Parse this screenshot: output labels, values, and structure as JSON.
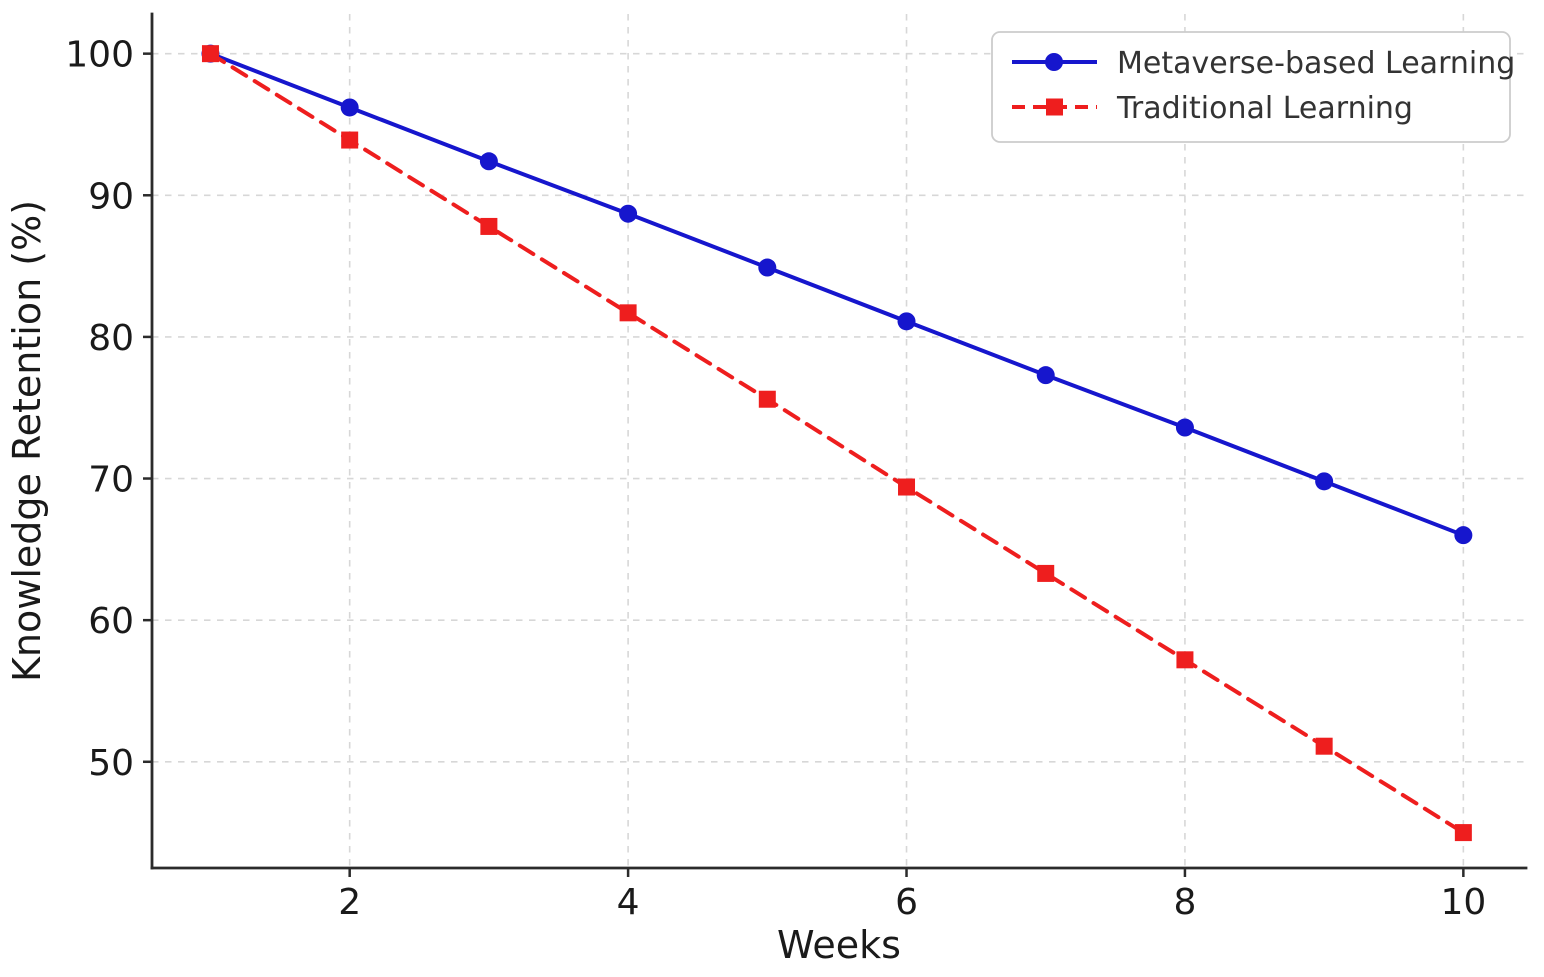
{
  "chart_data": {
    "type": "line",
    "title": "",
    "xlabel": "Weeks",
    "ylabel": "Knowledge Retention (%)",
    "x": [
      1,
      2,
      3,
      4,
      5,
      6,
      7,
      8,
      9,
      10
    ],
    "xticks": [
      2,
      4,
      6,
      8,
      10
    ],
    "yticks": [
      50,
      60,
      70,
      80,
      90,
      100
    ],
    "xlim": [
      0.58,
      10.45
    ],
    "ylim": [
      42.5,
      102.8
    ],
    "grid": true,
    "grid_style": "dashed",
    "legend_position": "upper right",
    "series": [
      {
        "name": "Metaverse-based Learning",
        "color": "#1616cd",
        "marker": "circle",
        "line_style": "solid",
        "values": [
          100,
          96.2,
          92.4,
          88.7,
          84.9,
          81.1,
          77.3,
          73.6,
          69.8,
          66
        ]
      },
      {
        "name": "Traditional Learning",
        "color": "#ee1e1e",
        "marker": "square",
        "line_style": "dashed",
        "values": [
          100,
          93.9,
          87.8,
          81.7,
          75.6,
          69.4,
          63.3,
          57.2,
          51.1,
          45
        ]
      }
    ],
    "colors": {
      "grid": "#d7d7d7",
      "spine": "#2b2b2b",
      "legend_border": "#cccccc",
      "background": "#ffffff"
    }
  }
}
